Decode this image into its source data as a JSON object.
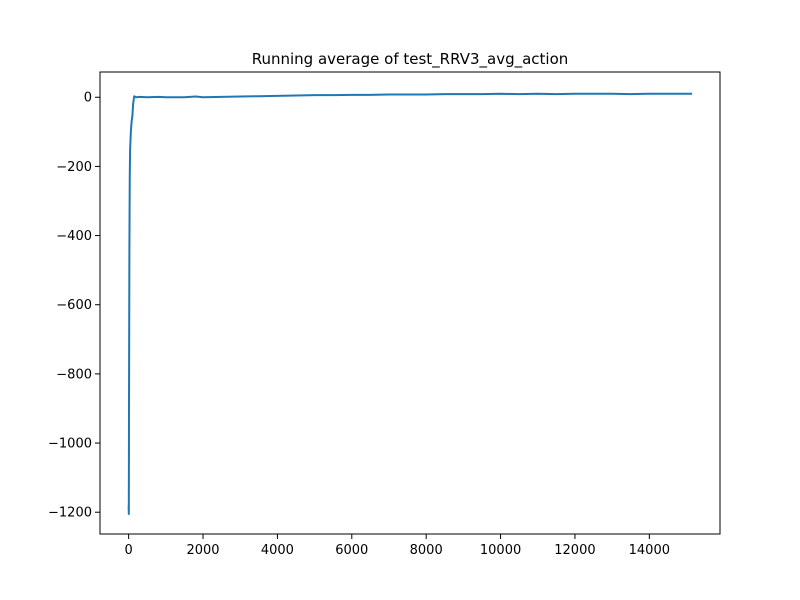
{
  "chart_data": {
    "type": "line",
    "title": "Running average of test_RRV3_avg_action",
    "xlabel": "",
    "ylabel": "",
    "xlim": [
      -770,
      15900
    ],
    "ylim": [
      -1263,
      73
    ],
    "xticks": [
      0,
      2000,
      4000,
      6000,
      8000,
      10000,
      12000,
      14000
    ],
    "yticks": [
      -1200,
      -1000,
      -800,
      -600,
      -400,
      -200,
      0
    ],
    "ytick_labels": [
      "−1200",
      "−1000",
      "−800",
      "−600",
      "−400",
      "−200",
      "0"
    ],
    "grid": false,
    "legend": "none",
    "colors": {
      "line": "#1f77b4",
      "axes": "#000000",
      "background": "#ffffff"
    },
    "series": [
      {
        "x": [
          0,
          5,
          10,
          20,
          30,
          40,
          60,
          80,
          100,
          120,
          150,
          200,
          300,
          500,
          800,
          1000,
          1500,
          1800,
          2000,
          2500,
          3000,
          3500,
          4000,
          4500,
          5000,
          5500,
          6000,
          6500,
          7000,
          7500,
          8000,
          8500,
          9000,
          9500,
          10000,
          10500,
          11000,
          11500,
          12000,
          12500,
          13000,
          13500,
          14000,
          14500,
          15000,
          15150
        ],
        "y": [
          -1180,
          -1205,
          -900,
          -450,
          -230,
          -150,
          -100,
          -70,
          -55,
          -20,
          3,
          0,
          1,
          0,
          1,
          0,
          0,
          2,
          0,
          1,
          2,
          3,
          4,
          5,
          6,
          6,
          7,
          7,
          8,
          8,
          8,
          9,
          9,
          9,
          10,
          9,
          10,
          9,
          10,
          10,
          10,
          9,
          10,
          10,
          10,
          10
        ]
      }
    ]
  }
}
